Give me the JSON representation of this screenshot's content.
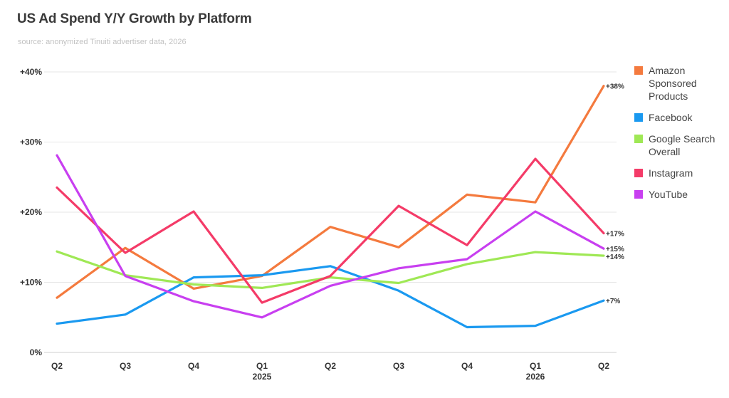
{
  "title": "US Ad Spend Y/Y Growth by Platform",
  "subtitle": "source: anonymized Tinuiti advertiser data, 2026",
  "chart_data": {
    "type": "line",
    "categories": [
      "Q2",
      "Q3",
      "Q4",
      "Q1",
      "Q2",
      "Q3",
      "Q4",
      "Q1",
      "Q2"
    ],
    "year_labels": [
      "",
      "",
      "",
      "2025",
      "",
      "",
      "",
      "2026",
      ""
    ],
    "ylim": [
      0,
      40
    ],
    "yticks": [
      "0%",
      "+10%",
      "+20%",
      "+30%",
      "+40%"
    ],
    "ytick_values": [
      0,
      10,
      20,
      30,
      40
    ],
    "grid": true,
    "legend_position": "right",
    "series": [
      {
        "name": "Amazon Sponsored Products",
        "color": "#f47a3e",
        "values": [
          7.8,
          14.9,
          9.1,
          10.9,
          17.9,
          15.0,
          22.5,
          21.4,
          38.0
        ],
        "end_label": "+38%"
      },
      {
        "name": "Facebook",
        "color": "#1a99f0",
        "values": [
          4.1,
          5.4,
          10.7,
          11.0,
          12.3,
          8.8,
          3.6,
          3.8,
          7.4
        ],
        "end_label": "+7%"
      },
      {
        "name": "Google Search Overall",
        "color": "#9fe855",
        "values": [
          14.4,
          11.0,
          9.7,
          9.2,
          10.7,
          9.9,
          12.6,
          14.3,
          13.8
        ],
        "end_label": "+14%"
      },
      {
        "name": "Instagram",
        "color": "#f43b68",
        "values": [
          23.5,
          14.2,
          20.1,
          7.1,
          10.9,
          20.9,
          15.3,
          27.6,
          17.0
        ],
        "end_label": "+17%"
      },
      {
        "name": "YouTube",
        "color": "#c83ff0",
        "values": [
          28.1,
          10.9,
          7.3,
          5.0,
          9.5,
          12.0,
          13.3,
          20.1,
          14.8
        ],
        "end_label": "+15%"
      }
    ]
  }
}
